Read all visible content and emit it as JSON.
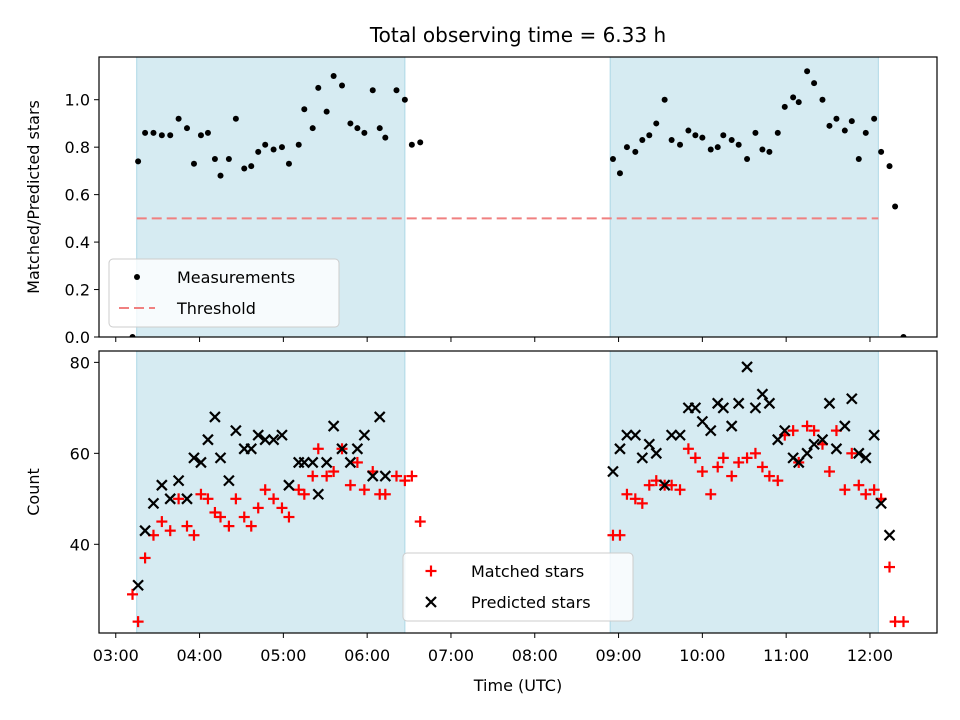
{
  "title": "Total observing time = 6.33 h",
  "colors": {
    "shade": "#add8e6",
    "threshold": "#f08080",
    "matched": "#ff0000",
    "predicted": "#000000",
    "measurement": "#000000"
  },
  "chart_data": [
    {
      "type": "scatter",
      "ylabel": "Matched/Predicted stars",
      "xlim": [
        "02:48",
        "12:48"
      ],
      "ylim": [
        0,
        1.18
      ],
      "yticks": [
        0.0,
        0.2,
        0.4,
        0.6,
        0.8,
        1.0
      ],
      "ytick_labels": [
        "0.0",
        "0.2",
        "0.4",
        "0.6",
        "0.8",
        "1.0"
      ],
      "shaded_spans": [
        [
          "03:15",
          "06:27"
        ],
        [
          "08:54",
          "12:06"
        ]
      ],
      "threshold": {
        "y": 0.5,
        "x_start": "03:15",
        "x_end": "12:06"
      },
      "legend": {
        "location": "lower-left",
        "entries": [
          "Measurements",
          "Threshold"
        ]
      },
      "series": [
        {
          "name": "Measurements",
          "points": [
            [
              "03:12",
              0.0
            ],
            [
              "03:16",
              0.74
            ],
            [
              "03:21",
              0.86
            ],
            [
              "03:27",
              0.86
            ],
            [
              "03:33",
              0.85
            ],
            [
              "03:39",
              0.85
            ],
            [
              "03:45",
              0.92
            ],
            [
              "03:51",
              0.88
            ],
            [
              "03:56",
              0.73
            ],
            [
              "04:01",
              0.85
            ],
            [
              "04:06",
              0.86
            ],
            [
              "04:11",
              0.75
            ],
            [
              "04:15",
              0.68
            ],
            [
              "04:21",
              0.75
            ],
            [
              "04:26",
              0.92
            ],
            [
              "04:32",
              0.71
            ],
            [
              "04:37",
              0.72
            ],
            [
              "04:42",
              0.78
            ],
            [
              "04:47",
              0.81
            ],
            [
              "04:53",
              0.79
            ],
            [
              "04:59",
              0.8
            ],
            [
              "05:04",
              0.73
            ],
            [
              "05:11",
              0.81
            ],
            [
              "05:15",
              0.96
            ],
            [
              "05:21",
              0.88
            ],
            [
              "05:25",
              1.05
            ],
            [
              "05:31",
              0.95
            ],
            [
              "05:36",
              1.1
            ],
            [
              "05:42",
              1.06
            ],
            [
              "05:48",
              0.9
            ],
            [
              "05:53",
              0.88
            ],
            [
              "05:58",
              0.86
            ],
            [
              "06:04",
              1.04
            ],
            [
              "06:09",
              0.88
            ],
            [
              "06:13",
              0.84
            ],
            [
              "06:21",
              1.04
            ],
            [
              "06:27",
              1.0
            ],
            [
              "06:32",
              0.81
            ],
            [
              "06:38",
              0.82
            ],
            [
              "08:56",
              0.75
            ],
            [
              "09:01",
              0.69
            ],
            [
              "09:06",
              0.8
            ],
            [
              "09:12",
              0.78
            ],
            [
              "09:17",
              0.83
            ],
            [
              "09:22",
              0.85
            ],
            [
              "09:27",
              0.9
            ],
            [
              "09:33",
              1.0
            ],
            [
              "09:38",
              0.83
            ],
            [
              "09:44",
              0.81
            ],
            [
              "09:50",
              0.87
            ],
            [
              "09:55",
              0.85
            ],
            [
              "10:00",
              0.84
            ],
            [
              "10:06",
              0.79
            ],
            [
              "10:11",
              0.8
            ],
            [
              "10:15",
              0.85
            ],
            [
              "10:21",
              0.83
            ],
            [
              "10:26",
              0.81
            ],
            [
              "10:32",
              0.75
            ],
            [
              "10:38",
              0.86
            ],
            [
              "10:43",
              0.79
            ],
            [
              "10:48",
              0.78
            ],
            [
              "10:54",
              0.86
            ],
            [
              "10:59",
              0.97
            ],
            [
              "11:05",
              1.01
            ],
            [
              "11:09",
              0.99
            ],
            [
              "11:15",
              1.12
            ],
            [
              "11:20",
              1.07
            ],
            [
              "11:26",
              1.0
            ],
            [
              "11:31",
              0.89
            ],
            [
              "11:36",
              0.92
            ],
            [
              "11:42",
              0.87
            ],
            [
              "11:47",
              0.91
            ],
            [
              "11:52",
              0.75
            ],
            [
              "11:57",
              0.86
            ],
            [
              "12:03",
              0.92
            ],
            [
              "12:08",
              0.78
            ],
            [
              "12:14",
              0.72
            ],
            [
              "12:18",
              0.55
            ],
            [
              "12:24",
              0.0
            ]
          ]
        }
      ]
    },
    {
      "type": "scatter",
      "xlabel": "Time (UTC)",
      "ylabel": "Count",
      "xlim": [
        "02:48",
        "12:48"
      ],
      "ylim": [
        20.5,
        82.5
      ],
      "yticks": [
        40,
        60,
        80
      ],
      "ytick_labels": [
        "40",
        "60",
        "80"
      ],
      "xticks": [
        "03:00",
        "04:00",
        "05:00",
        "06:00",
        "07:00",
        "08:00",
        "09:00",
        "10:00",
        "11:00",
        "12:00"
      ],
      "xtick_labels": [
        "03:00",
        "04:00",
        "05:00",
        "06:00",
        "07:00",
        "08:00",
        "09:00",
        "10:00",
        "11:00",
        "12:00"
      ],
      "shaded_spans": [
        [
          "03:15",
          "06:27"
        ],
        [
          "08:54",
          "12:06"
        ]
      ],
      "legend": {
        "location": "lower-center",
        "entries": [
          "Matched stars",
          "Predicted stars"
        ]
      },
      "series": [
        {
          "name": "Matched stars",
          "points": [
            [
              "03:12",
              29
            ],
            [
              "03:16",
              23
            ],
            [
              "03:21",
              37
            ],
            [
              "03:27",
              42
            ],
            [
              "03:33",
              45
            ],
            [
              "03:39",
              43
            ],
            [
              "03:45",
              50
            ],
            [
              "03:51",
              44
            ],
            [
              "03:56",
              42
            ],
            [
              "04:01",
              51
            ],
            [
              "04:06",
              50
            ],
            [
              "04:11",
              47
            ],
            [
              "04:15",
              46
            ],
            [
              "04:21",
              44
            ],
            [
              "04:26",
              50
            ],
            [
              "04:32",
              46
            ],
            [
              "04:37",
              44
            ],
            [
              "04:42",
              48
            ],
            [
              "04:47",
              52
            ],
            [
              "04:53",
              50
            ],
            [
              "04:59",
              48
            ],
            [
              "05:04",
              46
            ],
            [
              "05:11",
              52
            ],
            [
              "05:15",
              51
            ],
            [
              "05:21",
              55
            ],
            [
              "05:25",
              61
            ],
            [
              "05:31",
              55
            ],
            [
              "05:36",
              56
            ],
            [
              "05:42",
              61
            ],
            [
              "05:48",
              53
            ],
            [
              "05:53",
              58
            ],
            [
              "05:58",
              52
            ],
            [
              "06:04",
              56
            ],
            [
              "06:09",
              51
            ],
            [
              "06:13",
              51
            ],
            [
              "06:21",
              55
            ],
            [
              "06:27",
              54
            ],
            [
              "06:32",
              55
            ],
            [
              "06:38",
              45
            ],
            [
              "08:56",
              42
            ],
            [
              "09:01",
              42
            ],
            [
              "09:06",
              51
            ],
            [
              "09:12",
              50
            ],
            [
              "09:17",
              49
            ],
            [
              "09:22",
              53
            ],
            [
              "09:27",
              54
            ],
            [
              "09:33",
              53
            ],
            [
              "09:38",
              53
            ],
            [
              "09:44",
              52
            ],
            [
              "09:50",
              61
            ],
            [
              "09:55",
              59
            ],
            [
              "10:00",
              56
            ],
            [
              "10:06",
              51
            ],
            [
              "10:11",
              57
            ],
            [
              "10:15",
              59
            ],
            [
              "10:21",
              55
            ],
            [
              "10:26",
              58
            ],
            [
              "10:32",
              59
            ],
            [
              "10:38",
              60
            ],
            [
              "10:43",
              57
            ],
            [
              "10:48",
              55
            ],
            [
              "10:54",
              54
            ],
            [
              "10:59",
              64
            ],
            [
              "11:05",
              65
            ],
            [
              "11:09",
              58
            ],
            [
              "11:15",
              66
            ],
            [
              "11:20",
              65
            ],
            [
              "11:26",
              62
            ],
            [
              "11:31",
              56
            ],
            [
              "11:36",
              65
            ],
            [
              "11:42",
              52
            ],
            [
              "11:47",
              60
            ],
            [
              "11:52",
              53
            ],
            [
              "11:57",
              51
            ],
            [
              "12:03",
              52
            ],
            [
              "12:08",
              50
            ],
            [
              "12:14",
              35
            ],
            [
              "12:18",
              23
            ],
            [
              "12:24",
              23
            ]
          ]
        },
        {
          "name": "Predicted stars",
          "points": [
            [
              "03:16",
              31
            ],
            [
              "03:21",
              43
            ],
            [
              "03:27",
              49
            ],
            [
              "03:33",
              53
            ],
            [
              "03:39",
              50
            ],
            [
              "03:45",
              54
            ],
            [
              "03:51",
              50
            ],
            [
              "03:56",
              59
            ],
            [
              "04:01",
              58
            ],
            [
              "04:06",
              63
            ],
            [
              "04:11",
              68
            ],
            [
              "04:15",
              59
            ],
            [
              "04:21",
              54
            ],
            [
              "04:26",
              65
            ],
            [
              "04:32",
              61
            ],
            [
              "04:37",
              61
            ],
            [
              "04:42",
              64
            ],
            [
              "04:47",
              63
            ],
            [
              "04:53",
              63
            ],
            [
              "04:59",
              64
            ],
            [
              "05:04",
              53
            ],
            [
              "05:11",
              58
            ],
            [
              "05:15",
              58
            ],
            [
              "05:21",
              58
            ],
            [
              "05:25",
              51
            ],
            [
              "05:31",
              58
            ],
            [
              "05:36",
              66
            ],
            [
              "05:42",
              61
            ],
            [
              "05:48",
              58
            ],
            [
              "05:53",
              61
            ],
            [
              "05:58",
              64
            ],
            [
              "06:04",
              55
            ],
            [
              "06:09",
              68
            ],
            [
              "06:13",
              55
            ],
            [
              "08:56",
              56
            ],
            [
              "09:01",
              61
            ],
            [
              "09:06",
              64
            ],
            [
              "09:12",
              64
            ],
            [
              "09:17",
              59
            ],
            [
              "09:22",
              62
            ],
            [
              "09:27",
              60
            ],
            [
              "09:33",
              53
            ],
            [
              "09:38",
              64
            ],
            [
              "09:44",
              64
            ],
            [
              "09:50",
              70
            ],
            [
              "09:55",
              70
            ],
            [
              "10:00",
              67
            ],
            [
              "10:06",
              65
            ],
            [
              "10:11",
              71
            ],
            [
              "10:15",
              70
            ],
            [
              "10:21",
              66
            ],
            [
              "10:26",
              71
            ],
            [
              "10:32",
              79
            ],
            [
              "10:38",
              70
            ],
            [
              "10:43",
              73
            ],
            [
              "10:48",
              71
            ],
            [
              "10:54",
              63
            ],
            [
              "10:59",
              65
            ],
            [
              "11:05",
              59
            ],
            [
              "11:09",
              58
            ],
            [
              "11:15",
              60
            ],
            [
              "11:20",
              62
            ],
            [
              "11:26",
              63
            ],
            [
              "11:31",
              71
            ],
            [
              "11:36",
              61
            ],
            [
              "11:42",
              66
            ],
            [
              "11:47",
              72
            ],
            [
              "11:52",
              60
            ],
            [
              "11:57",
              59
            ],
            [
              "12:03",
              64
            ],
            [
              "12:08",
              49
            ],
            [
              "12:14",
              42
            ]
          ]
        }
      ]
    }
  ]
}
